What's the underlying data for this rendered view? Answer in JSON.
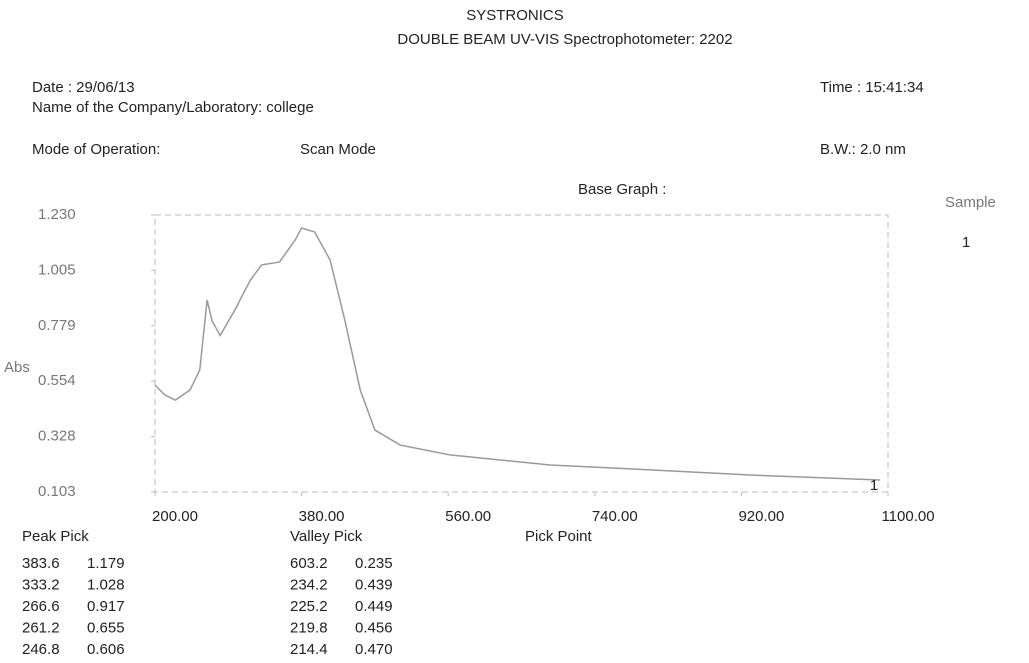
{
  "header": {
    "title": "SYSTRONICS",
    "subtitle": "DOUBLE BEAM UV-VIS Spectrophotometer: 2202",
    "date": "Date : 29/06/13",
    "company": "Name of the Company/Laboratory: college",
    "time": "Time : 15:41:34",
    "mode_label": "Mode of Operation:",
    "mode_value": "Scan Mode",
    "bandwidth": "B.W.: 2.0 nm",
    "base_graph": "Base Graph :",
    "sample_label": "Sample",
    "sample_number": "1"
  },
  "chart_data": {
    "type": "line",
    "ylabel": "Abs",
    "curve_label": "1",
    "color": "#9a9a9a",
    "x": [
      200,
      212,
      225,
      243,
      255,
      264,
      270,
      280,
      298,
      317,
      331,
      353,
      372,
      380,
      396,
      415,
      433,
      452,
      470,
      501,
      562,
      685,
      808,
      931,
      1090
    ],
    "values": [
      0.538,
      0.498,
      0.477,
      0.518,
      0.6,
      0.884,
      0.8,
      0.74,
      0.843,
      0.965,
      1.027,
      1.039,
      1.128,
      1.177,
      1.161,
      1.047,
      0.803,
      0.518,
      0.355,
      0.294,
      0.254,
      0.213,
      0.193,
      0.172,
      0.152
    ],
    "xlim": [
      200,
      1100
    ],
    "xticks": [
      {
        "value": 200,
        "label": "200.00"
      },
      {
        "value": 380,
        "label": "380.00"
      },
      {
        "value": 560,
        "label": "560.00"
      },
      {
        "value": 740,
        "label": "740.00"
      },
      {
        "value": 920,
        "label": "920.00"
      },
      {
        "value": 1100,
        "label": "1100.00"
      }
    ],
    "ylim": [
      0.103,
      1.23
    ],
    "yticks": [
      {
        "value": 1.23,
        "label": "1.230"
      },
      1.005,
      0.779,
      0.554,
      0.328,
      0.103
    ]
  },
  "peak_pick": {
    "header": "Peak Pick",
    "rows": [
      [
        "383.6",
        "1.179"
      ],
      [
        "333.2",
        "1.028"
      ],
      [
        "266.6",
        "0.917"
      ],
      [
        "261.2",
        "0.655"
      ],
      [
        "246.8",
        "0.606"
      ]
    ]
  },
  "valley_pick": {
    "header": "Valley Pick",
    "rows": [
      [
        "603.2",
        "0.235"
      ],
      [
        "234.2",
        "0.439"
      ],
      [
        "225.2",
        "0.449"
      ],
      [
        "219.8",
        "0.456"
      ],
      [
        "214.4",
        "0.470"
      ]
    ]
  },
  "pick_point": {
    "header": "Pick Point"
  }
}
